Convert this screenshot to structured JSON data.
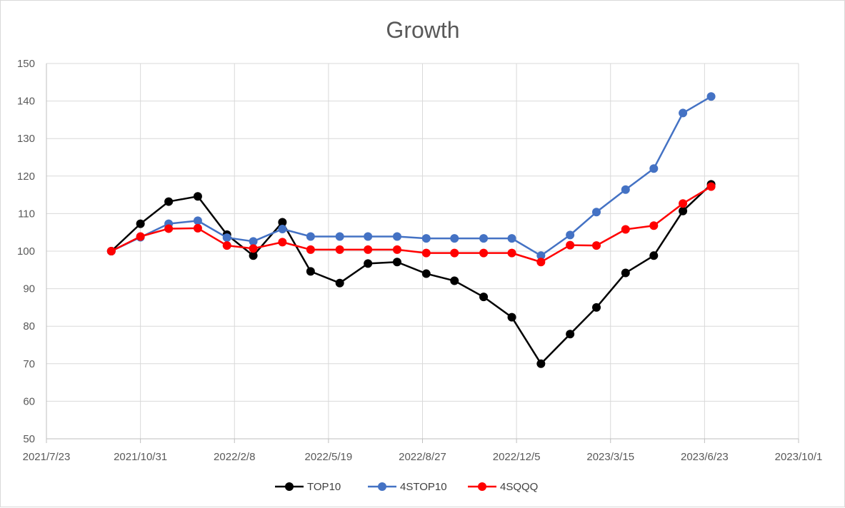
{
  "chart_data": {
    "type": "line",
    "title": "Growth",
    "xlabel": "",
    "ylabel": "",
    "grid": true,
    "legend": "bottom",
    "x_axis": {
      "type": "date",
      "range": [
        "2021-07-23",
        "2023-10-01"
      ],
      "ticks": [
        {
          "date": "2021-07-23",
          "label": "2021/7/23"
        },
        {
          "date": "2021-10-31",
          "label": "2021/10/31"
        },
        {
          "date": "2022-02-08",
          "label": "2022/2/8"
        },
        {
          "date": "2022-05-19",
          "label": "2022/5/19"
        },
        {
          "date": "2022-08-27",
          "label": "2022/8/27"
        },
        {
          "date": "2022-12-05",
          "label": "2022/12/5"
        },
        {
          "date": "2023-03-15",
          "label": "2023/3/15"
        },
        {
          "date": "2023-06-23",
          "label": "2023/6/23"
        },
        {
          "date": "2023-10-01",
          "label": "2023/10/1"
        }
      ]
    },
    "y_axis": {
      "range": [
        50,
        150
      ],
      "ticks": [
        50,
        60,
        70,
        80,
        90,
        100,
        110,
        120,
        130,
        140,
        150
      ]
    },
    "x": [
      "2021-09-30",
      "2021-10-31",
      "2021-11-30",
      "2021-12-31",
      "2022-01-31",
      "2022-02-28",
      "2022-03-31",
      "2022-04-30",
      "2022-05-31",
      "2022-06-30",
      "2022-07-31",
      "2022-08-31",
      "2022-09-30",
      "2022-10-31",
      "2022-11-30",
      "2022-12-31",
      "2023-01-31",
      "2023-02-28",
      "2023-03-31",
      "2023-04-30",
      "2023-05-31",
      "2023-06-30"
    ],
    "series": [
      {
        "name": "TOP10",
        "color": "#000000",
        "values": [
          100,
          107.3,
          113.2,
          114.6,
          104.4,
          98.8,
          107.7,
          94.6,
          91.5,
          96.7,
          97.1,
          94.0,
          92.1,
          87.8,
          82.4,
          70.0,
          77.9,
          85.0,
          94.2,
          98.8,
          110.7,
          117.8
        ]
      },
      {
        "name": "4STOP10",
        "color": "#4472c4",
        "values": [
          100,
          103.7,
          107.3,
          108.1,
          103.6,
          102.6,
          105.9,
          103.9,
          103.9,
          103.9,
          103.9,
          103.4,
          103.4,
          103.4,
          103.4,
          98.8,
          104.3,
          110.4,
          116.4,
          122.0,
          136.8,
          141.2
        ]
      },
      {
        "name": "4SQQQ",
        "color": "#ff0000",
        "values": [
          100,
          103.9,
          106.0,
          106.1,
          101.5,
          100.7,
          102.4,
          100.4,
          100.4,
          100.4,
          100.4,
          99.5,
          99.5,
          99.5,
          99.5,
          97.1,
          101.6,
          101.5,
          105.8,
          106.8,
          112.7,
          117.2
        ]
      }
    ]
  }
}
